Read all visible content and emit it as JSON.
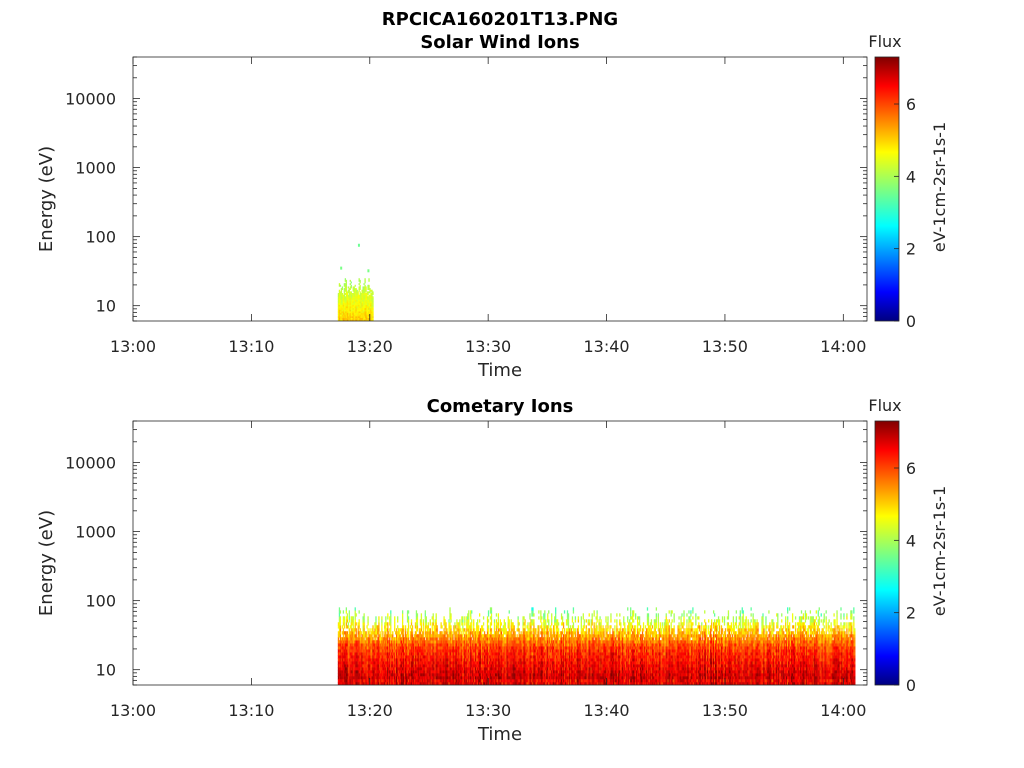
{
  "figure_title": "RPCICA160201T13.PNG",
  "chart_data": [
    {
      "type": "heatmap",
      "title": "Solar Wind Ions",
      "xlabel": "Time",
      "ylabel": "Energy (eV)",
      "x_ticks": [
        "13:00",
        "13:10",
        "13:20",
        "13:30",
        "13:40",
        "13:50",
        "14:00"
      ],
      "xlim": [
        "13:00",
        "14:02"
      ],
      "y_scale": "log",
      "y_ticks": [
        "10",
        "100",
        "1000",
        "10000"
      ],
      "ylim": [
        6,
        40000
      ],
      "colorbar": {
        "title": "Flux",
        "label": "eV-1cm-2sr-1s-1",
        "ticks": [
          "0",
          "2",
          "4",
          "6"
        ],
        "range": [
          0,
          7.3
        ],
        "colormap": "jet"
      },
      "data_regions": [
        {
          "t_start": "13:17.3",
          "t_end": "13:20.3",
          "e_min": 6,
          "e_max": 25,
          "flux_min": 3.3,
          "flux_max": 5.2
        }
      ],
      "sparse_points": [
        {
          "t": "13:19.0",
          "e": 75,
          "flux": 3.5
        },
        {
          "t": "13:17.5",
          "e": 35,
          "flux": 3.6
        },
        {
          "t": "13:19.8",
          "e": 32,
          "flux": 3.6
        }
      ]
    },
    {
      "type": "heatmap",
      "title": "Cometary Ions",
      "xlabel": "Time",
      "ylabel": "Energy (eV)",
      "x_ticks": [
        "13:00",
        "13:10",
        "13:20",
        "13:30",
        "13:40",
        "13:50",
        "14:00"
      ],
      "xlim": [
        "13:00",
        "14:02"
      ],
      "y_scale": "log",
      "y_ticks": [
        "10",
        "100",
        "1000",
        "10000"
      ],
      "ylim": [
        6,
        40000
      ],
      "colorbar": {
        "title": "Flux",
        "label": "eV-1cm-2sr-1s-1",
        "ticks": [
          "0",
          "2",
          "4",
          "6"
        ],
        "range": [
          0,
          7.3
        ],
        "colormap": "jet"
      },
      "data_regions": [
        {
          "t_start": "13:17.3",
          "t_end": "14:01",
          "e_min": 6,
          "e_max": 80,
          "flux_profile": "high at low energy (6.2-7.2 near 10-20 eV), decreasing to 3.5 near 80 eV"
        }
      ]
    }
  ]
}
